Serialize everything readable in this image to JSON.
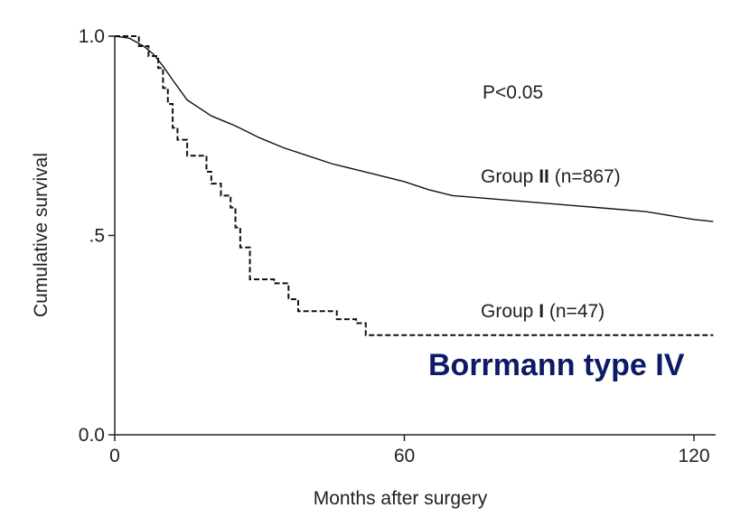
{
  "chart_data": {
    "type": "line",
    "title": "",
    "xlabel": "Months after surgery",
    "ylabel": "Cumulative survival",
    "xlim": [
      0,
      124
    ],
    "ylim": [
      0,
      1.0
    ],
    "x_ticks": [
      0,
      60,
      120
    ],
    "x_tick_labels": [
      "0",
      "60",
      "120"
    ],
    "y_ticks": [
      0,
      0.5,
      1.0
    ],
    "y_tick_labels": [
      "0.0",
      ".5",
      "1.0"
    ],
    "grid": false,
    "series": [
      {
        "name": "Group II (n=867)",
        "style": "solid",
        "x": [
          0,
          3,
          6,
          8,
          10,
          12,
          15,
          20,
          25,
          30,
          35,
          40,
          45,
          50,
          55,
          60,
          65,
          70,
          80,
          90,
          100,
          110,
          115,
          120,
          124
        ],
        "y": [
          1.0,
          0.995,
          0.975,
          0.955,
          0.925,
          0.89,
          0.84,
          0.8,
          0.775,
          0.745,
          0.72,
          0.7,
          0.68,
          0.665,
          0.65,
          0.635,
          0.615,
          0.6,
          0.59,
          0.58,
          0.57,
          0.56,
          0.55,
          0.54,
          0.535
        ]
      },
      {
        "name": "Group I (n=47)",
        "style": "dashed",
        "x": [
          0,
          2,
          5,
          7,
          9,
          10,
          11,
          12,
          13,
          15,
          17,
          19,
          20,
          22,
          24,
          25,
          26,
          28,
          33,
          36,
          38,
          42,
          46,
          50,
          52,
          55,
          60,
          80,
          124
        ],
        "y": [
          1.0,
          1.0,
          0.975,
          0.95,
          0.92,
          0.87,
          0.83,
          0.77,
          0.74,
          0.7,
          0.7,
          0.66,
          0.63,
          0.6,
          0.57,
          0.52,
          0.47,
          0.39,
          0.38,
          0.34,
          0.31,
          0.31,
          0.29,
          0.28,
          0.25,
          0.25,
          0.25,
          0.25,
          0.25
        ]
      }
    ],
    "annotations": {
      "p_value": "P<0.05",
      "group2_prefix": "Group ",
      "group2_roman": "II",
      "group2_suffix": " (n=867)",
      "group1_prefix": "Group ",
      "group1_roman": "I",
      "group1_suffix": " (n=47)",
      "headline": "Borrmann type IV",
      "headline_color": "#0d1a66"
    }
  }
}
